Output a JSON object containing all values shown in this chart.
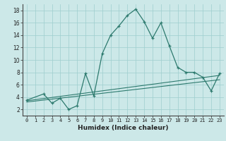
{
  "xlabel": "Humidex (Indice chaleur)",
  "bg_color": "#cce8e8",
  "line_color": "#2d7a6e",
  "xlim": [
    -0.5,
    23.5
  ],
  "ylim": [
    1.0,
    19.0
  ],
  "xticks": [
    0,
    1,
    2,
    3,
    4,
    5,
    6,
    7,
    8,
    9,
    10,
    11,
    12,
    13,
    14,
    15,
    16,
    17,
    18,
    19,
    20,
    21,
    22,
    23
  ],
  "yticks": [
    2,
    4,
    6,
    8,
    10,
    12,
    14,
    16,
    18
  ],
  "main_x": [
    0,
    2,
    3,
    4,
    5,
    6,
    7,
    8,
    9,
    10,
    11,
    12,
    13,
    14,
    15,
    16,
    17,
    18,
    19,
    20,
    21,
    22,
    23
  ],
  "main_y": [
    3.5,
    4.5,
    3.0,
    3.8,
    2.0,
    2.6,
    7.8,
    4.2,
    11.0,
    14.0,
    15.5,
    17.2,
    18.2,
    16.2,
    13.5,
    16.0,
    12.3,
    8.8,
    8.0,
    8.0,
    7.2,
    5.0,
    7.8
  ],
  "line2_x": [
    0,
    23
  ],
  "line2_y": [
    3.2,
    6.8
  ],
  "line3_x": [
    0,
    23
  ],
  "line3_y": [
    3.4,
    7.5
  ],
  "line4_x": [
    0,
    21,
    23
  ],
  "line4_y": [
    3.5,
    7.2,
    7.8
  ]
}
